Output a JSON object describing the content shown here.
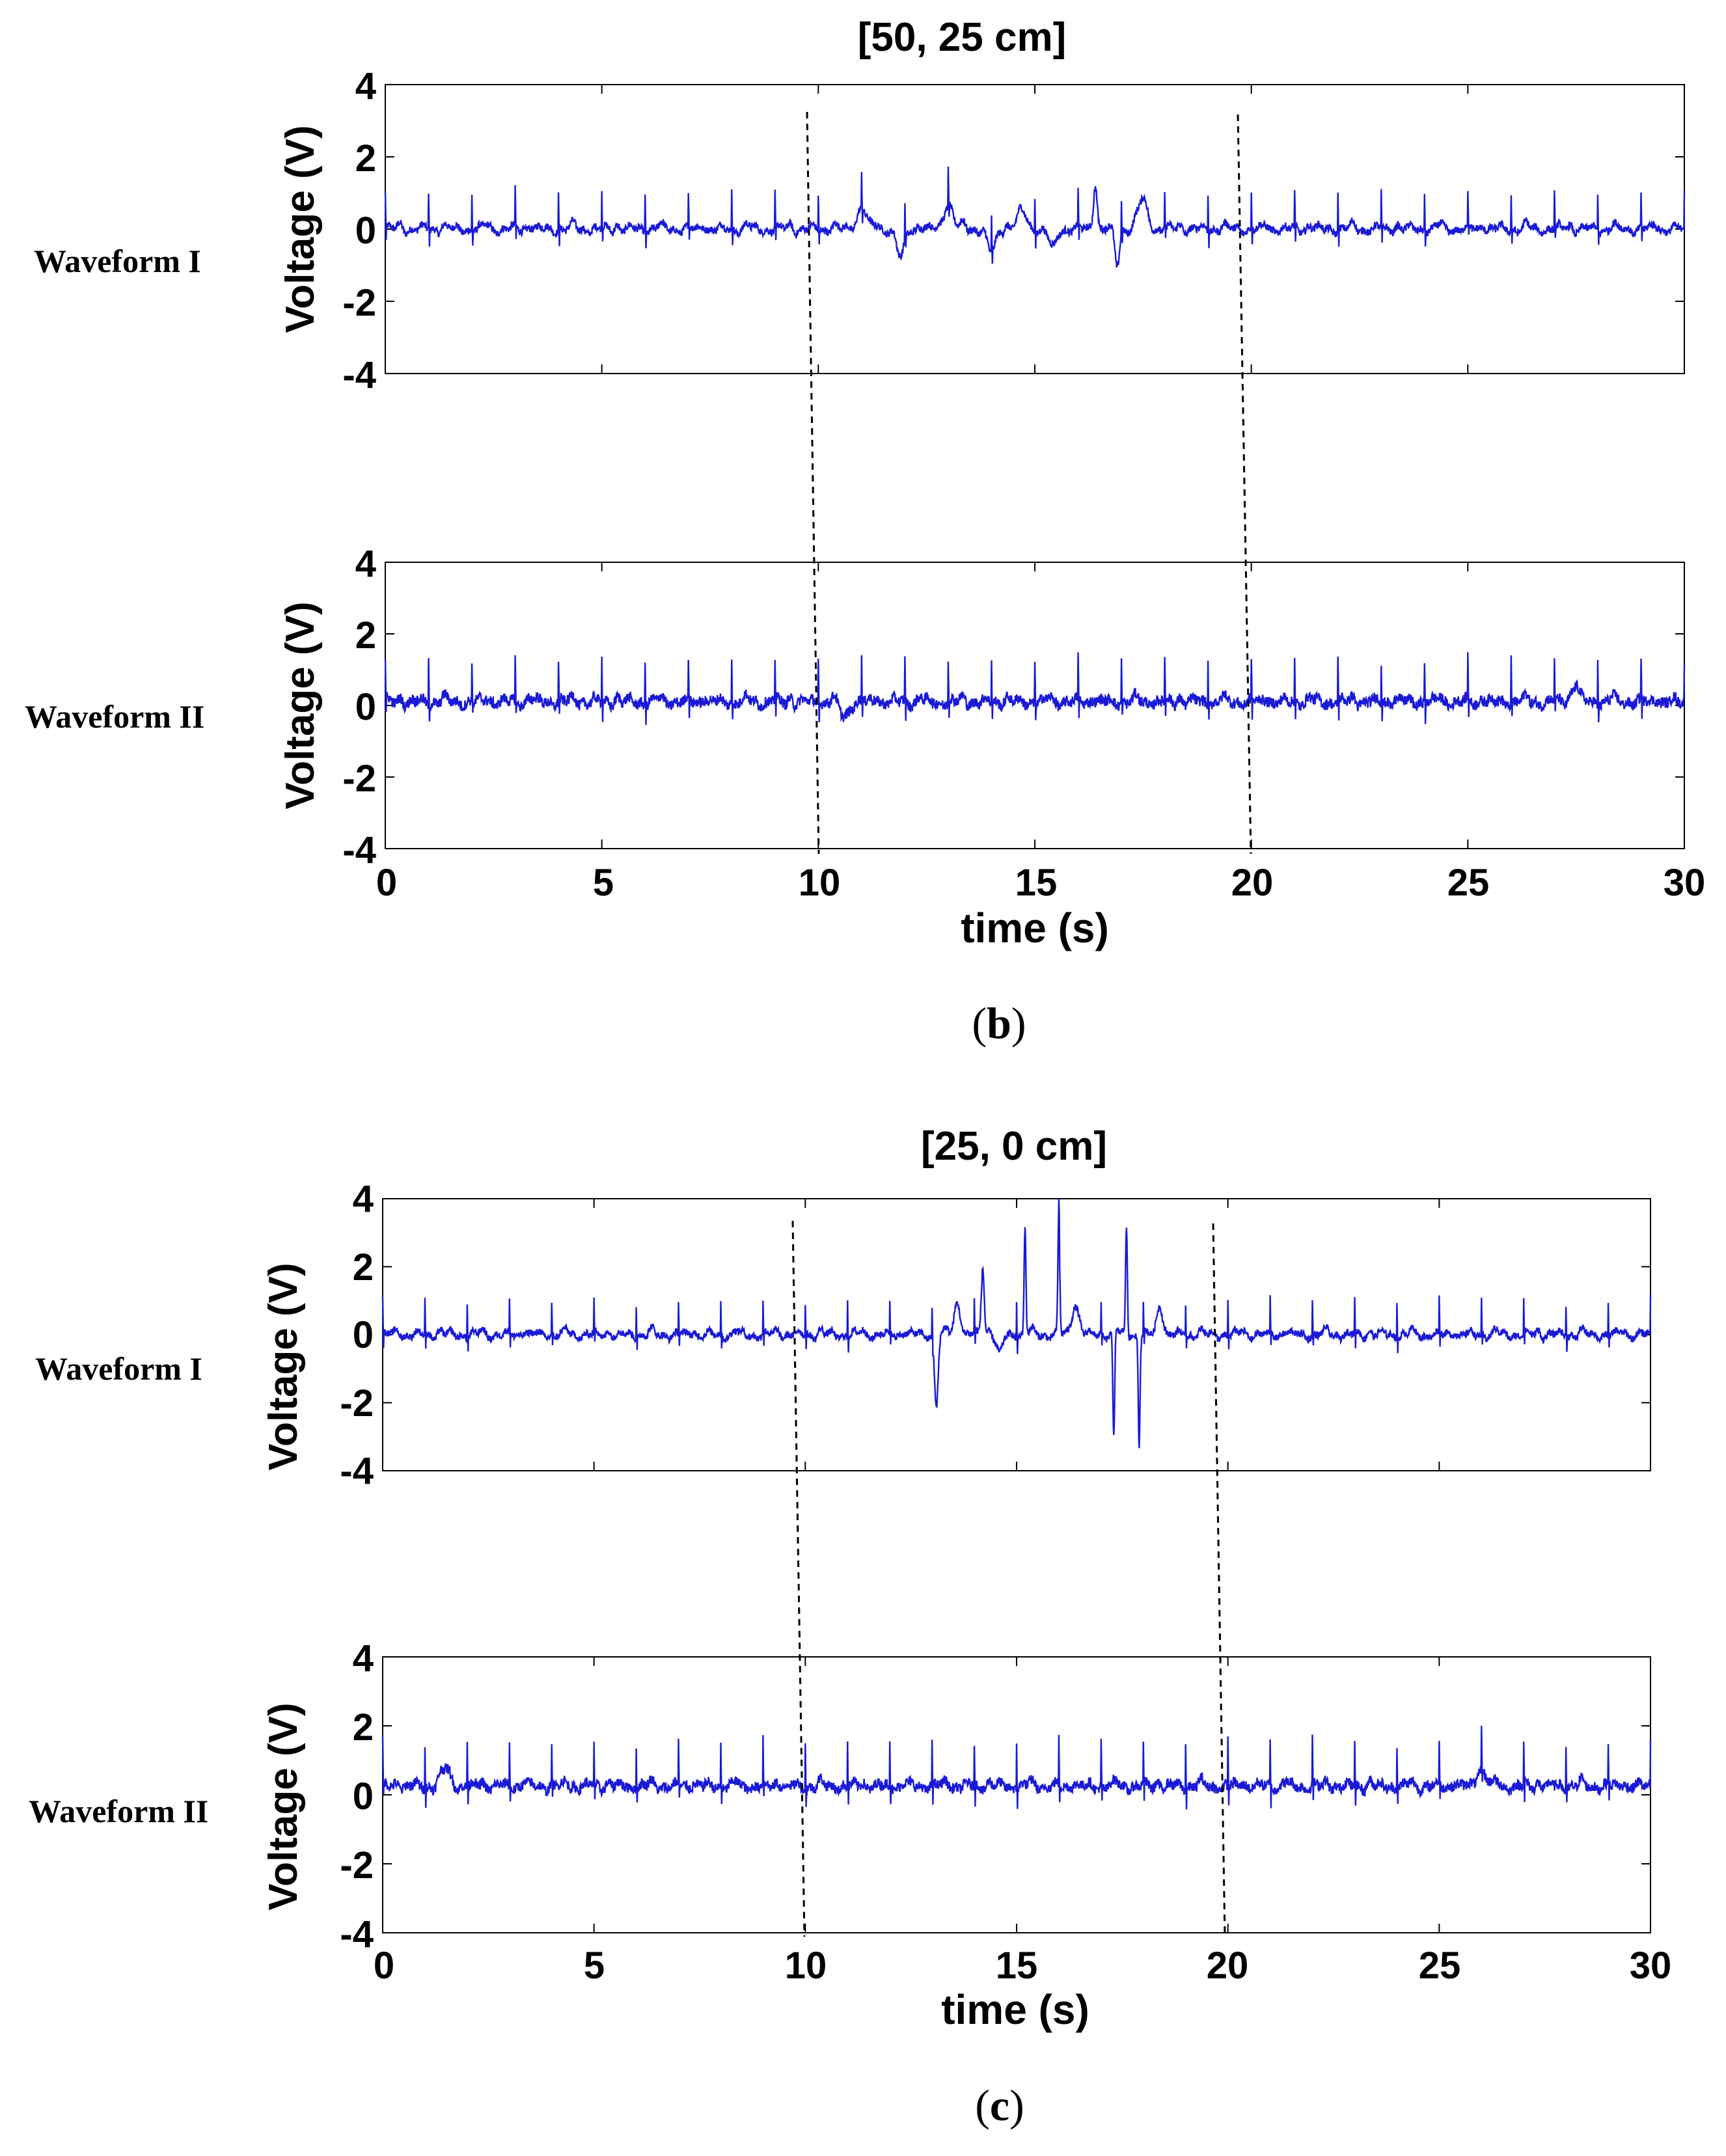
{
  "chart_data": [
    {
      "type": "line",
      "panel": "b",
      "title": "[50, 25 cm]",
      "caption": {
        "open": "(",
        "letter": "b",
        "close": ")"
      },
      "xlabel": "time (s)",
      "xlim": [
        0,
        30
      ],
      "xticks": [
        "0",
        "5",
        "10",
        "15",
        "20",
        "25",
        "30"
      ],
      "subplots": [
        {
          "waveform_label": "Waveform I",
          "ylabel": "Voltage (V)",
          "ylim": [
            -4,
            4
          ],
          "yticks": [
            "4",
            "2",
            "0",
            "-2",
            "-4"
          ],
          "series": {
            "name": "Waveform I",
            "color": "#1a1ad6",
            "baseline": 0,
            "spike_period_s": 1.0,
            "spike_amp": 1.0,
            "noise_amp": 0.1,
            "disturbances": [
              {
                "t": 11.0,
                "amp": 0.6,
                "width": 0.3
              },
              {
                "t": 11.9,
                "amp": -0.8,
                "width": 0.25
              },
              {
                "t": 13.0,
                "amp": 0.7,
                "width": 0.3
              },
              {
                "t": 14.0,
                "amp": -0.7,
                "width": 0.25
              },
              {
                "t": 14.7,
                "amp": 0.5,
                "width": 0.3
              },
              {
                "t": 15.4,
                "amp": -0.6,
                "width": 0.25
              },
              {
                "t": 16.4,
                "amp": 1.2,
                "width": 0.12
              },
              {
                "t": 16.9,
                "amp": -1.0,
                "width": 0.15
              },
              {
                "t": 17.5,
                "amp": 0.8,
                "width": 0.3
              }
            ]
          }
        },
        {
          "waveform_label": "Waveform II",
          "ylabel": "Voltage (V)",
          "ylim": [
            -4,
            4
          ],
          "yticks": [
            "4",
            "2",
            "0",
            "-2",
            "-4"
          ],
          "series": {
            "name": "Waveform II",
            "color": "#1a1ad6",
            "baseline": 0.1,
            "spike_period_s": 1.0,
            "spike_amp": 1.2,
            "noise_amp": 0.15,
            "disturbances": [
              {
                "t": 10.6,
                "amp": -0.4,
                "width": 0.3
              },
              {
                "t": 27.5,
                "amp": 0.5,
                "width": 0.2
              }
            ]
          }
        }
      ],
      "dashed_markers_s": [
        10,
        20
      ]
    },
    {
      "type": "line",
      "panel": "c",
      "title": "[25, 0 cm]",
      "caption": {
        "open": "(",
        "letter": "c",
        "close": ")"
      },
      "xlabel": "time (s)",
      "xlim": [
        0,
        30
      ],
      "xticks": [
        "0",
        "5",
        "10",
        "15",
        "20",
        "25",
        "30"
      ],
      "subplots": [
        {
          "waveform_label": "Waveform I",
          "ylabel": "Voltage (V)",
          "ylim": [
            -4,
            4
          ],
          "yticks": [
            "4",
            "2",
            "0",
            "-2",
            "-4"
          ],
          "series": {
            "name": "Waveform I",
            "color": "#1a1ad6",
            "baseline": 0,
            "spike_period_s": 1.0,
            "spike_amp": 1.0,
            "noise_amp": 0.1,
            "disturbances": [
              {
                "t": 13.1,
                "amp": -2.1,
                "width": 0.12
              },
              {
                "t": 13.6,
                "amp": 1.0,
                "width": 0.2
              },
              {
                "t": 14.2,
                "amp": 2.0,
                "width": 0.1
              },
              {
                "t": 14.6,
                "amp": -0.6,
                "width": 0.2
              },
              {
                "t": 15.2,
                "amp": 3.2,
                "width": 0.06
              },
              {
                "t": 16.0,
                "amp": 3.6,
                "width": 0.06
              },
              {
                "t": 16.4,
                "amp": 0.8,
                "width": 0.25
              },
              {
                "t": 17.3,
                "amp": -3.1,
                "width": 0.06
              },
              {
                "t": 17.6,
                "amp": 3.2,
                "width": 0.06
              },
              {
                "t": 17.9,
                "amp": -3.2,
                "width": 0.06
              },
              {
                "t": 18.4,
                "amp": 0.8,
                "width": 0.2
              }
            ]
          }
        },
        {
          "waveform_label": "Waveform II",
          "ylabel": "Voltage (V)",
          "ylim": [
            -4,
            4
          ],
          "yticks": [
            "4",
            "2",
            "0",
            "-2",
            "-4"
          ],
          "series": {
            "name": "Waveform II",
            "color": "#1a1ad6",
            "baseline": 0.25,
            "spike_period_s": 1.0,
            "spike_amp": 1.3,
            "noise_amp": 0.15,
            "disturbances": [
              {
                "t": 1.5,
                "amp": 0.5,
                "width": 0.3
              },
              {
                "t": 26.0,
                "amp": 0.5,
                "width": 0.3
              }
            ]
          }
        }
      ],
      "dashed_markers_s": [
        10,
        20
      ]
    }
  ]
}
